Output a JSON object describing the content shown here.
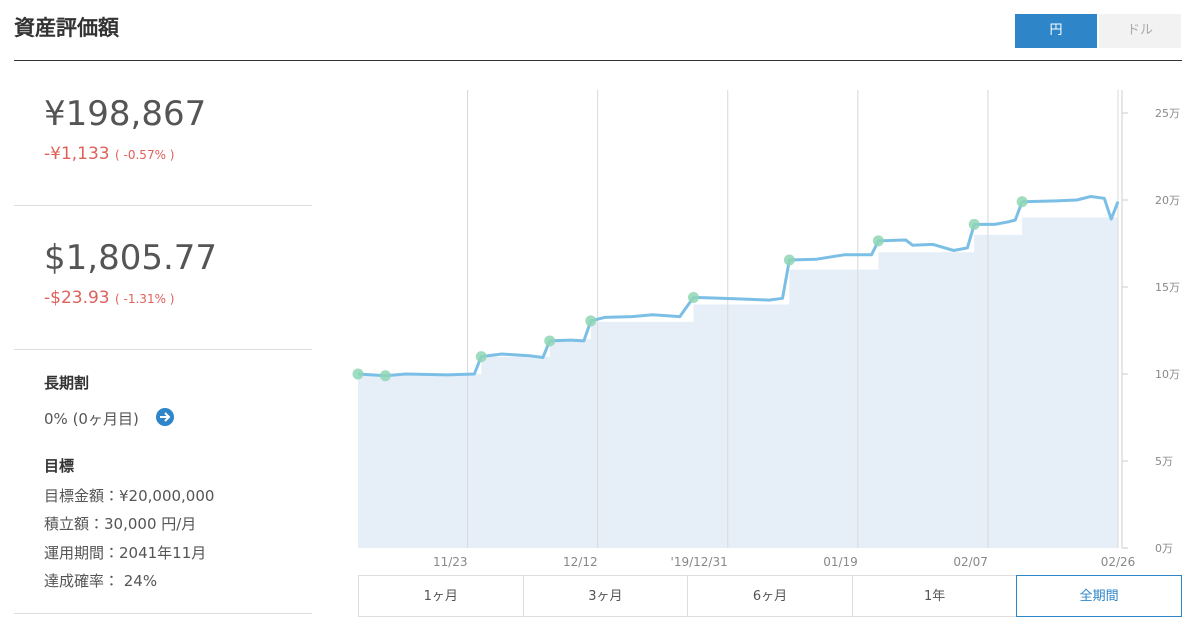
{
  "header": {
    "title": "資産評価額",
    "currency_toggle": [
      "円",
      "ドル"
    ],
    "active_currency": 0
  },
  "summary": {
    "jpy": {
      "value": "¥198,867",
      "change": "-¥1,133",
      "change_pct": "( -0.57% )"
    },
    "usd": {
      "value": "$1,805.77",
      "change": "-$23.93",
      "change_pct": "( -1.31% )"
    }
  },
  "long_term": {
    "title": "長期割",
    "value": "0% (0ヶ月目)"
  },
  "goal": {
    "title": "目標",
    "items": [
      "目標金額：¥20,000,000",
      "積立額：30,000 円/月",
      "運用期間：2041年11月",
      "達成確率： 24%"
    ]
  },
  "chart_data": {
    "type": "line",
    "xlim": [
      "11/07",
      "02/26"
    ],
    "xticks": [
      "11/23",
      "12/12",
      {
        "value": "12/31",
        "label": "'19/12/31"
      },
      "01/19",
      "02/07",
      "02/26"
    ],
    "ylim": [
      0,
      250000
    ],
    "yticks": [
      {
        "value": 0,
        "label": "0万"
      },
      {
        "value": 50000,
        "label": "5万"
      },
      {
        "value": 100000,
        "label": "10万"
      },
      {
        "value": 150000,
        "label": "15万"
      },
      {
        "value": 200000,
        "label": "20万"
      },
      {
        "value": 250000,
        "label": "25万"
      }
    ],
    "grid": true,
    "series": [
      {
        "color": "#7cbfe6",
        "x": [
          "11/07",
          "11/11",
          "11/14",
          "11/20",
          "11/24",
          "11/25",
          "11/28",
          "12/02",
          "12/04",
          "12/05",
          "12/08",
          "12/10",
          "12/11",
          "12/13",
          "12/17",
          "12/20",
          "12/24",
          "12/26",
          "12/30",
          "01/03",
          "01/06",
          "01/08",
          "01/09",
          "01/13",
          "01/17",
          "01/21",
          "01/22",
          "01/26",
          "01/27",
          "01/30",
          "02/02",
          "02/04",
          "02/05",
          "02/08",
          "02/10",
          "02/11",
          "02/12",
          "02/17",
          "02/20",
          "02/22",
          "02/24",
          "02/25",
          "02/26"
        ],
        "values": [
          100000,
          99000,
          100000,
          99500,
          100000,
          110000,
          111500,
          110500,
          109500,
          119000,
          119500,
          119000,
          130500,
          132500,
          133000,
          134000,
          133000,
          144000,
          143500,
          143000,
          142500,
          143500,
          165500,
          166000,
          168500,
          168500,
          176500,
          177000,
          174000,
          174500,
          171000,
          172500,
          186000,
          186000,
          187500,
          188500,
          199000,
          199500,
          200000,
          202000,
          201000,
          189000,
          199000
        ]
      },
      {
        "color": "#e6eff8",
        "x": [
          "11/07",
          "11/25",
          "12/05",
          "12/11",
          "12/26",
          "01/09",
          "01/22",
          "02/05",
          "02/12",
          "02/26"
        ],
        "values": [
          100000,
          110000,
          120000,
          130000,
          140000,
          160000,
          170000,
          180000,
          190000,
          190000
        ]
      }
    ],
    "markers": {
      "color": "#8fd6b5",
      "x": [
        "11/07",
        "11/11",
        "11/25",
        "12/05",
        "12/11",
        "12/26",
        "01/09",
        "01/22",
        "02/05",
        "02/12"
      ],
      "values": [
        100000,
        99000,
        110000,
        119000,
        130500,
        144000,
        165500,
        176500,
        186000,
        199000
      ]
    }
  },
  "periods": {
    "labels": [
      "1ヶ月",
      "3ヶ月",
      "6ヶ月",
      "1年",
      "全期間"
    ],
    "active": 4
  }
}
